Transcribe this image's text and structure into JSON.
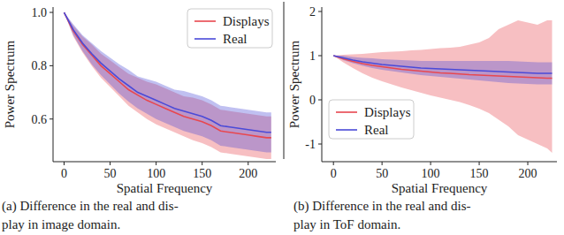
{
  "chart_data": [
    {
      "type": "line",
      "x_label": "Spatial Frequency",
      "y_label": "Power Spectrum",
      "caption": [
        "(a) Difference in the real and dis-",
        "play in image domain."
      ],
      "x": [
        0,
        10,
        20,
        30,
        40,
        50,
        60,
        70,
        80,
        90,
        100,
        110,
        120,
        130,
        140,
        150,
        160,
        170,
        180,
        190,
        200,
        210,
        220,
        225
      ],
      "xlim": [
        -12,
        230
      ],
      "xticks": [
        0,
        50,
        100,
        150,
        200
      ],
      "ylim": [
        0.44,
        1.02
      ],
      "yticks": [
        0.6,
        0.8,
        {
          "value": 1,
          "label": "1.0"
        }
      ],
      "legend": "upper right",
      "grid": false,
      "series": [
        {
          "name": "Displays",
          "color": "#e8474f",
          "values": [
            1.0,
            0.93,
            0.88,
            0.84,
            0.8,
            0.77,
            0.74,
            0.71,
            0.69,
            0.67,
            0.655,
            0.64,
            0.625,
            0.61,
            0.6,
            0.59,
            0.575,
            0.555,
            0.55,
            0.545,
            0.54,
            0.535,
            0.53,
            0.53
          ],
          "lower": [
            1.0,
            0.91,
            0.85,
            0.8,
            0.755,
            0.72,
            0.685,
            0.65,
            0.625,
            0.6,
            0.58,
            0.565,
            0.55,
            0.535,
            0.52,
            0.51,
            0.495,
            0.475,
            0.47,
            0.465,
            0.46,
            0.455,
            0.45,
            0.45
          ],
          "upper": [
            1.0,
            0.95,
            0.91,
            0.88,
            0.845,
            0.82,
            0.795,
            0.77,
            0.755,
            0.74,
            0.73,
            0.715,
            0.7,
            0.685,
            0.68,
            0.67,
            0.655,
            0.635,
            0.63,
            0.625,
            0.62,
            0.615,
            0.61,
            0.61
          ]
        },
        {
          "name": "Real",
          "color": "#4a4ad8",
          "values": [
            1.0,
            0.935,
            0.885,
            0.845,
            0.81,
            0.78,
            0.75,
            0.725,
            0.7,
            0.685,
            0.67,
            0.655,
            0.64,
            0.63,
            0.62,
            0.61,
            0.595,
            0.575,
            0.57,
            0.565,
            0.56,
            0.555,
            0.55,
            0.55
          ],
          "lower": [
            1.0,
            0.915,
            0.855,
            0.805,
            0.765,
            0.73,
            0.695,
            0.665,
            0.64,
            0.62,
            0.6,
            0.585,
            0.57,
            0.555,
            0.545,
            0.535,
            0.52,
            0.5,
            0.495,
            0.49,
            0.485,
            0.48,
            0.475,
            0.475
          ],
          "upper": [
            1.0,
            0.955,
            0.915,
            0.885,
            0.855,
            0.83,
            0.805,
            0.785,
            0.76,
            0.75,
            0.74,
            0.725,
            0.71,
            0.705,
            0.695,
            0.685,
            0.67,
            0.65,
            0.645,
            0.64,
            0.635,
            0.63,
            0.625,
            0.625
          ]
        }
      ]
    },
    {
      "type": "line",
      "x_label": "Spatial Frequency",
      "y_label": "Power Spectrum",
      "caption": [
        "(b) Difference in the real and dis-",
        "play in ToF domain."
      ],
      "x": [
        0,
        10,
        20,
        30,
        40,
        50,
        60,
        70,
        80,
        90,
        100,
        110,
        120,
        130,
        140,
        150,
        160,
        170,
        180,
        190,
        200,
        210,
        220,
        225
      ],
      "xlim": [
        -12,
        230
      ],
      "xticks": [
        0,
        50,
        100,
        150,
        200
      ],
      "ylim": [
        -1.4,
        2.1
      ],
      "yticks": [
        -1,
        0,
        1,
        2
      ],
      "legend": "lower left",
      "grid": false,
      "series": [
        {
          "name": "Displays",
          "color": "#e8474f",
          "values": [
            1.0,
            0.93,
            0.87,
            0.82,
            0.78,
            0.75,
            0.72,
            0.69,
            0.67,
            0.65,
            0.63,
            0.61,
            0.6,
            0.585,
            0.57,
            0.56,
            0.55,
            0.54,
            0.53,
            0.52,
            0.51,
            0.5,
            0.49,
            0.49
          ],
          "lower": [
            1.0,
            0.85,
            0.72,
            0.6,
            0.5,
            0.42,
            0.35,
            0.28,
            0.22,
            0.16,
            0.1,
            0.05,
            0.0,
            -0.05,
            -0.12,
            -0.2,
            -0.3,
            -0.45,
            -0.6,
            -0.8,
            -0.9,
            -1.0,
            -1.1,
            -1.2
          ],
          "upper": [
            1.0,
            1.02,
            1.03,
            1.04,
            1.06,
            1.08,
            1.09,
            1.1,
            1.12,
            1.13,
            1.15,
            1.17,
            1.18,
            1.2,
            1.25,
            1.3,
            1.4,
            1.6,
            1.7,
            1.8,
            1.75,
            1.7,
            1.8,
            1.8
          ]
        },
        {
          "name": "Real",
          "color": "#4a4ad8",
          "values": [
            1.0,
            0.95,
            0.9,
            0.86,
            0.83,
            0.8,
            0.78,
            0.76,
            0.74,
            0.72,
            0.71,
            0.7,
            0.69,
            0.68,
            0.67,
            0.66,
            0.65,
            0.64,
            0.63,
            0.62,
            0.61,
            0.6,
            0.6,
            0.6
          ],
          "lower": [
            1.0,
            0.9,
            0.83,
            0.77,
            0.72,
            0.68,
            0.65,
            0.62,
            0.59,
            0.56,
            0.54,
            0.52,
            0.5,
            0.48,
            0.46,
            0.44,
            0.42,
            0.4,
            0.38,
            0.37,
            0.36,
            0.35,
            0.35,
            0.35
          ],
          "upper": [
            1.0,
            1.0,
            0.97,
            0.95,
            0.94,
            0.92,
            0.91,
            0.9,
            0.89,
            0.88,
            0.88,
            0.88,
            0.88,
            0.88,
            0.88,
            0.88,
            0.88,
            0.88,
            0.88,
            0.87,
            0.86,
            0.85,
            0.85,
            0.85
          ]
        }
      ]
    }
  ]
}
